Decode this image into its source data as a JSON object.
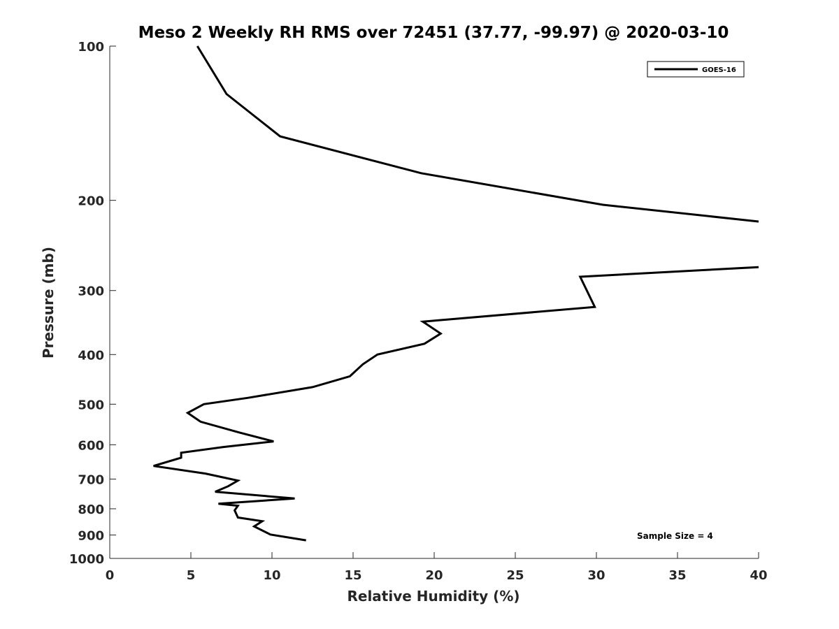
{
  "chart_data": {
    "type": "line",
    "title": "Meso 2 Weekly RH RMS over 72451 (37.77, -99.97) @ 2020-03-10",
    "xlabel": "Relative Humidity (%)",
    "ylabel": "Pressure (mb)",
    "xlim": [
      0,
      40
    ],
    "ylim": [
      100,
      1000
    ],
    "yscale": "log",
    "yreversed": true,
    "x_ticks": [
      "0",
      "5",
      "10",
      "15",
      "20",
      "25",
      "30",
      "35",
      "40"
    ],
    "x_tick_values": [
      0,
      5,
      10,
      15,
      20,
      25,
      30,
      35,
      40
    ],
    "y_ticks": [
      "100",
      "200",
      "300",
      "400",
      "500",
      "600",
      "700",
      "800",
      "900",
      "1000"
    ],
    "y_tick_values": [
      100,
      200,
      300,
      400,
      500,
      600,
      700,
      800,
      900,
      1000
    ],
    "grid": false,
    "legend": {
      "position": "top-right",
      "entries": [
        "GOES-16"
      ]
    },
    "annotations": [
      "Sample Size = 4"
    ],
    "series": [
      {
        "name": "GOES-16",
        "color": "#000000",
        "segments": [
          {
            "rh": [
              5.4,
              7.2,
              10.5,
              19.2,
              30.4,
              40.0
            ],
            "pressure": [
              100,
              124,
              150,
              177,
              204,
              220
            ]
          },
          {
            "rh": [
              40.0,
              29.0,
              29.9,
              19.3,
              20.4,
              19.4,
              16.5,
              15.6,
              14.8,
              12.5,
              8.5,
              5.8,
              4.8,
              5.6,
              8.0,
              10.1,
              7.0,
              4.4,
              4.4,
              2.7,
              5.9,
              7.9,
              7.3,
              6.5,
              11.4,
              6.7,
              7.9,
              7.7,
              7.9,
              9.4,
              8.9,
              9.9,
              12.1
            ],
            "pressure": [
              270,
              282,
              323,
              345,
              364,
              381,
              400,
              418,
              441,
              463,
              486,
              500,
              520,
              541,
              568,
              591,
              606,
              622,
              636,
              660,
              683,
              705,
              723,
              741,
              764,
              782,
              789,
              806,
              832,
              846,
              866,
              898,
              922
            ]
          }
        ]
      }
    ]
  }
}
